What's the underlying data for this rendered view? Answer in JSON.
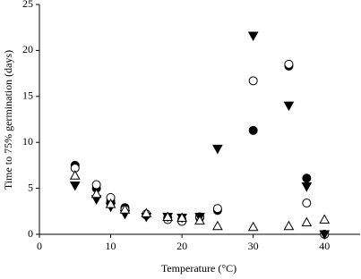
{
  "chart_data": {
    "type": "scatter",
    "x_label": "Temperature (°C)",
    "y_label": "Time to 75% germination (days)",
    "xlim": [
      0,
      45
    ],
    "xticks": [
      0,
      10,
      20,
      30,
      40
    ],
    "ylim": [
      0,
      25
    ],
    "yticks": [
      0,
      5,
      10,
      15,
      20,
      25
    ],
    "x": [
      5,
      8,
      10,
      12,
      15,
      18,
      20,
      22.5,
      25,
      30,
      35,
      37.5,
      40
    ],
    "series": [
      {
        "marker": "circle",
        "filled": true,
        "color": "#000000",
        "values": [
          7.5,
          5.0,
          3.6,
          2.9,
          2.1,
          1.8,
          1.6,
          1.8,
          2.6,
          11.3,
          18.3,
          6.1,
          0
        ]
      },
      {
        "marker": "circle",
        "filled": false,
        "color": "#000000",
        "values": [
          7.2,
          5.4,
          4.0,
          2.7,
          2.2,
          1.6,
          1.4,
          1.9,
          2.8,
          16.7,
          18.5,
          3.4,
          0
        ]
      },
      {
        "marker": "triangle-down",
        "filled": true,
        "color": "#000000",
        "values": [
          5.3,
          3.8,
          3.0,
          2.2,
          1.9,
          1.9,
          1.8,
          1.9,
          9.3,
          21.6,
          14.0,
          5.2,
          0
        ]
      },
      {
        "marker": "triangle-up",
        "filled": false,
        "color": "#000000",
        "values": [
          6.4,
          4.4,
          3.3,
          2.7,
          2.3,
          1.9,
          1.8,
          1.5,
          0.9,
          0.8,
          0.9,
          1.3,
          1.6
        ]
      }
    ]
  }
}
